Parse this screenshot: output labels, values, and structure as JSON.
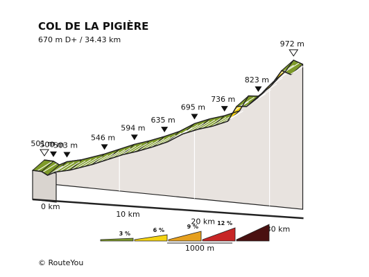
{
  "chart_data": {
    "type": "area",
    "title": "COL DE LA PIGIÈRE",
    "subtitle": "670 m D+ / 34.43 km",
    "x_unit": "km",
    "y_unit": "m",
    "xlim": [
      0,
      34.43
    ],
    "distance_km": [
      0,
      1.2,
      2.0,
      3.0,
      5.0,
      8.0,
      10.0,
      12.0,
      14.0,
      16.0,
      18.0,
      20.0,
      22.0,
      24.0,
      26.0,
      27.2,
      28.5,
      30.0,
      31.2,
      32.2,
      33.2,
      34.43
    ],
    "elevation_m": [
      501,
      500,
      488,
      503,
      516,
      546,
      570,
      594,
      613,
      635,
      660,
      695,
      718,
      736,
      760,
      820,
      823,
      860,
      900,
      930,
      972,
      960
    ],
    "elevation_markers": [
      {
        "km": 0.0,
        "label": "501 m",
        "marker": "start"
      },
      {
        "km": 1.2,
        "label": "500 m",
        "marker": "down"
      },
      {
        "km": 3.0,
        "label": "503 m",
        "marker": "down"
      },
      {
        "km": 8.0,
        "label": "546 m",
        "marker": "down"
      },
      {
        "km": 12.0,
        "label": "594 m",
        "marker": "down"
      },
      {
        "km": 16.0,
        "label": "635 m",
        "marker": "down"
      },
      {
        "km": 20.0,
        "label": "695 m",
        "marker": "down"
      },
      {
        "km": 24.0,
        "label": "736 m",
        "marker": "down"
      },
      {
        "km": 28.5,
        "label": "823 m",
        "marker": "down"
      },
      {
        "km": 33.2,
        "label": "972 m",
        "marker": "end"
      }
    ],
    "x_ticks": [
      {
        "km": 0,
        "label": "0 km"
      },
      {
        "km": 10,
        "label": "10 km"
      },
      {
        "km": 20,
        "label": "20 km"
      },
      {
        "km": 30,
        "label": "30 km"
      }
    ],
    "gradient_classes": [
      {
        "label": "3 %",
        "color": "#7e9a2a"
      },
      {
        "label": "6 %",
        "color": "#f5d312"
      },
      {
        "label": "9 %",
        "color": "#e6a01e"
      },
      {
        "label": "12 %",
        "color": "#c72626"
      },
      {
        "label": "",
        "color": "#4a1111"
      }
    ],
    "legend_scale": "1000 m"
  },
  "credit": "©  RouteYou"
}
